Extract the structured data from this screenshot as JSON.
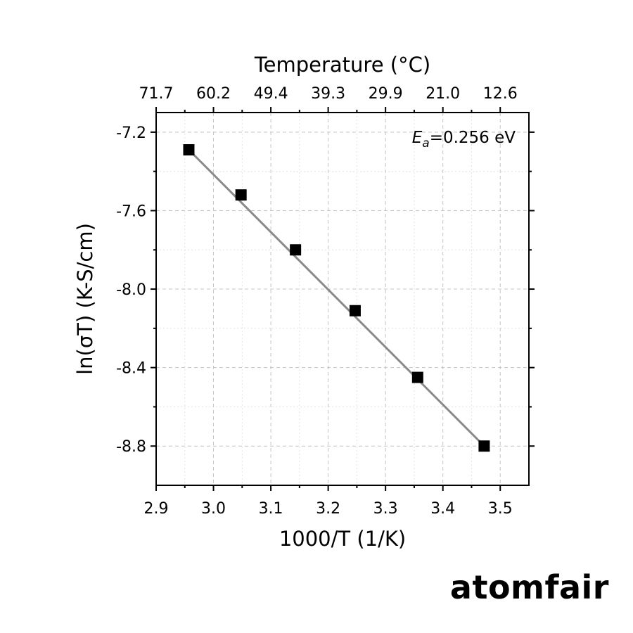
{
  "chart_data": {
    "type": "scatter",
    "title": "",
    "xlabel": "1000/T (1/K)",
    "ylabel": "ln(σT) (K-S/cm)",
    "top_xlabel": "Temperature (°C)",
    "xlim": [
      2.9,
      3.55
    ],
    "ylim": [
      -9.0,
      -7.1
    ],
    "x_ticks": [
      2.9,
      3.0,
      3.1,
      3.2,
      3.3,
      3.4,
      3.5
    ],
    "x_tick_labels": [
      "2.9",
      "3.0",
      "3.1",
      "3.2",
      "3.3",
      "3.4",
      "3.5"
    ],
    "y_ticks": [
      -7.2,
      -7.6,
      -8.0,
      -8.4,
      -8.8
    ],
    "y_tick_labels": [
      "-7.2",
      "-7.6",
      "-8.0",
      "-8.4",
      "-8.8"
    ],
    "top_ticks": [
      {
        "label": "71.7",
        "x": 2.9
      },
      {
        "label": "60.2",
        "x": 3.0
      },
      {
        "label": "49.4",
        "x": 3.1
      },
      {
        "label": "39.3",
        "x": 3.2
      },
      {
        "label": "29.9",
        "x": 3.3
      },
      {
        "label": "21.0",
        "x": 3.4
      },
      {
        "label": "12.6",
        "x": 3.5
      }
    ],
    "grid": true,
    "series": [
      {
        "marker": "square",
        "color": "#000000",
        "x": [
          2.957,
          3.048,
          3.143,
          3.247,
          3.356,
          3.472
        ],
        "y": [
          -7.29,
          -7.52,
          -7.8,
          -8.11,
          -8.45,
          -8.8
        ]
      }
    ],
    "fit": {
      "color": "#8a8a8a",
      "x": [
        2.957,
        3.472
      ],
      "y": [
        -7.29,
        -8.8
      ]
    },
    "annotation": {
      "symbol": "E",
      "subscript": "a",
      "text": "=0.256 eV",
      "placement": "top-right"
    }
  },
  "brand": {
    "text": "atomfair"
  }
}
